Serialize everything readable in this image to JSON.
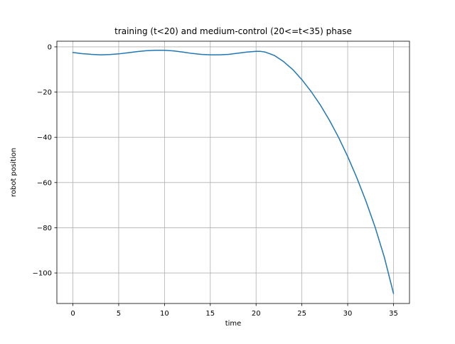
{
  "chart_data": {
    "type": "line",
    "title": "training (t<20) and medium-control (20<=t<35) phase",
    "xlabel": "time",
    "ylabel": "robot position",
    "xlim": [
      -1.75,
      36.75
    ],
    "ylim": [
      -113.5,
      2.5
    ],
    "xticks": [
      0,
      5,
      10,
      15,
      20,
      25,
      30,
      35
    ],
    "yticks": [
      0,
      -20,
      -40,
      -60,
      -80,
      -100
    ],
    "grid": true,
    "legend": "none",
    "series": [
      {
        "color": "#1f77b4",
        "x": [
          0,
          1,
          2,
          3,
          4,
          5,
          6,
          7,
          8,
          9,
          10,
          11,
          12,
          13,
          14,
          15,
          16,
          17,
          18,
          19,
          20,
          20.5,
          21,
          22,
          23,
          24,
          25,
          26,
          27,
          28,
          29,
          30,
          31,
          32,
          33,
          34,
          35
        ],
        "y": [
          -2.5,
          -3.0,
          -3.3,
          -3.5,
          -3.4,
          -3.1,
          -2.6,
          -2.1,
          -1.7,
          -1.5,
          -1.5,
          -1.8,
          -2.3,
          -2.9,
          -3.3,
          -3.5,
          -3.5,
          -3.3,
          -2.8,
          -2.3,
          -2.0,
          -2.0,
          -2.3,
          -3.8,
          -6.5,
          -10.0,
          -14.5,
          -19.7,
          -25.6,
          -32.4,
          -40.0,
          -48.5,
          -57.9,
          -68.3,
          -79.8,
          -93.0,
          -109.0
        ]
      }
    ]
  }
}
